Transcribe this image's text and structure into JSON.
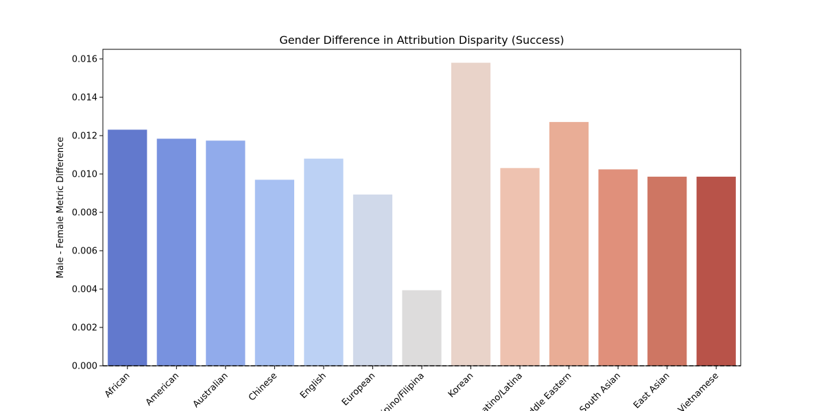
{
  "chart_data": {
    "type": "bar",
    "title": "Gender Difference in Attribution Disparity (Success)",
    "xlabel": "",
    "ylabel": "Male - Female Metric Difference",
    "ylim": [
      0,
      0.0165
    ],
    "yticks": [
      "0.000",
      "0.002",
      "0.004",
      "0.006",
      "0.008",
      "0.010",
      "0.012",
      "0.014",
      "0.016"
    ],
    "categories": [
      "African",
      "American",
      "Australian",
      "Chinese",
      "English",
      "European",
      "Filipino/Filipina",
      "Korean",
      "Latino/Latina",
      "Middle Eastern",
      "South Asian",
      "East Asian",
      "Vietnamese"
    ],
    "values": [
      0.01231,
      0.01184,
      0.01174,
      0.0097,
      0.0108,
      0.00893,
      0.00394,
      0.0158,
      0.01031,
      0.01271,
      0.01024,
      0.00986,
      0.00986
    ],
    "colors": [
      "#6279cd",
      "#7892df",
      "#91abeb",
      "#a7c0f2",
      "#bcd1f4",
      "#d0d9ea",
      "#dddcdc",
      "#e9d3c9",
      "#eec2b0",
      "#e9ad96",
      "#e0907b",
      "#ce7663",
      "#b85349"
    ],
    "reference_line": 0,
    "grid": false,
    "legend": "none"
  }
}
